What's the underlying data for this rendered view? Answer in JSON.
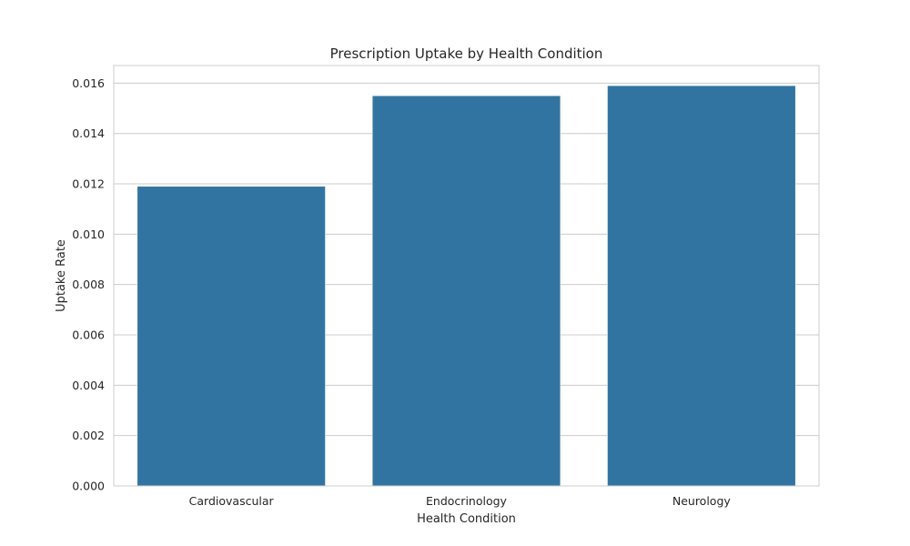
{
  "chart_data": {
    "type": "bar",
    "title": "Prescription Uptake by Health Condition",
    "xlabel": "Health Condition",
    "ylabel": "Uptake Rate",
    "categories": [
      "Cardiovascular",
      "Endocrinology",
      "Neurology"
    ],
    "values": [
      0.0119,
      0.0155,
      0.0159
    ],
    "ylim": [
      0,
      0.0167
    ],
    "yticks": [
      0.0,
      0.002,
      0.004,
      0.006,
      0.008,
      0.01,
      0.012,
      0.014,
      0.016
    ],
    "ytick_labels": [
      "0.000",
      "0.002",
      "0.004",
      "0.006",
      "0.008",
      "0.010",
      "0.012",
      "0.014",
      "0.016"
    ],
    "grid": true,
    "grid_axis": "y",
    "bar_color": "#3274a1",
    "grid_color": "#cccccc",
    "text_color": "#262626"
  }
}
